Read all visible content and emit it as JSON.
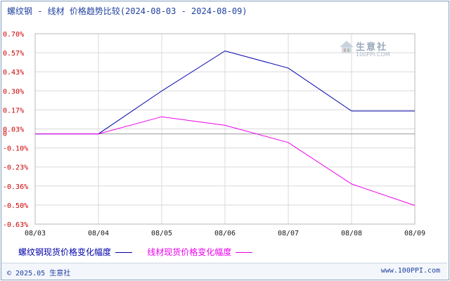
{
  "title": "螺纹钢 - 线材 价格趋势比较(2024-08-03 - 2024-08-09)",
  "footer": {
    "copyright": "© 2025.05 生意社",
    "site": "www.100PPI.com"
  },
  "watermark": {
    "text": "生意社",
    "url": "100PPI.COM"
  },
  "colors": {
    "series1": "#0000aa",
    "series2": "#ee00ee",
    "tick_y": "#cc0000",
    "grid": "#d9d9d9",
    "zero_line": "#999999"
  },
  "chart_data": {
    "type": "line",
    "x": [
      "08/03",
      "08/04",
      "08/05",
      "08/06",
      "08/07",
      "08/08",
      "08/09"
    ],
    "yticks": [
      "0.70%",
      "0.57%",
      "0.43%",
      "0.30%",
      "0.17%",
      "0.03%",
      "-0.10%",
      "-0.23%",
      "-0.36%",
      "-0.50%",
      "-0.63%"
    ],
    "ylim": [
      -0.63,
      0.7
    ],
    "zero_label": "0",
    "grid": true,
    "legend_position": "bottom",
    "series": [
      {
        "name": "螺纹钢现货价格变化幅度",
        "color": "#0000aa",
        "values": [
          0,
          0,
          0.3,
          0.58,
          0.46,
          0.16,
          0.16
        ]
      },
      {
        "name": "线材现货价格变化幅度",
        "color": "#ee00ee",
        "values": [
          0,
          0,
          0.12,
          0.06,
          -0.06,
          -0.35,
          -0.5
        ]
      }
    ]
  }
}
